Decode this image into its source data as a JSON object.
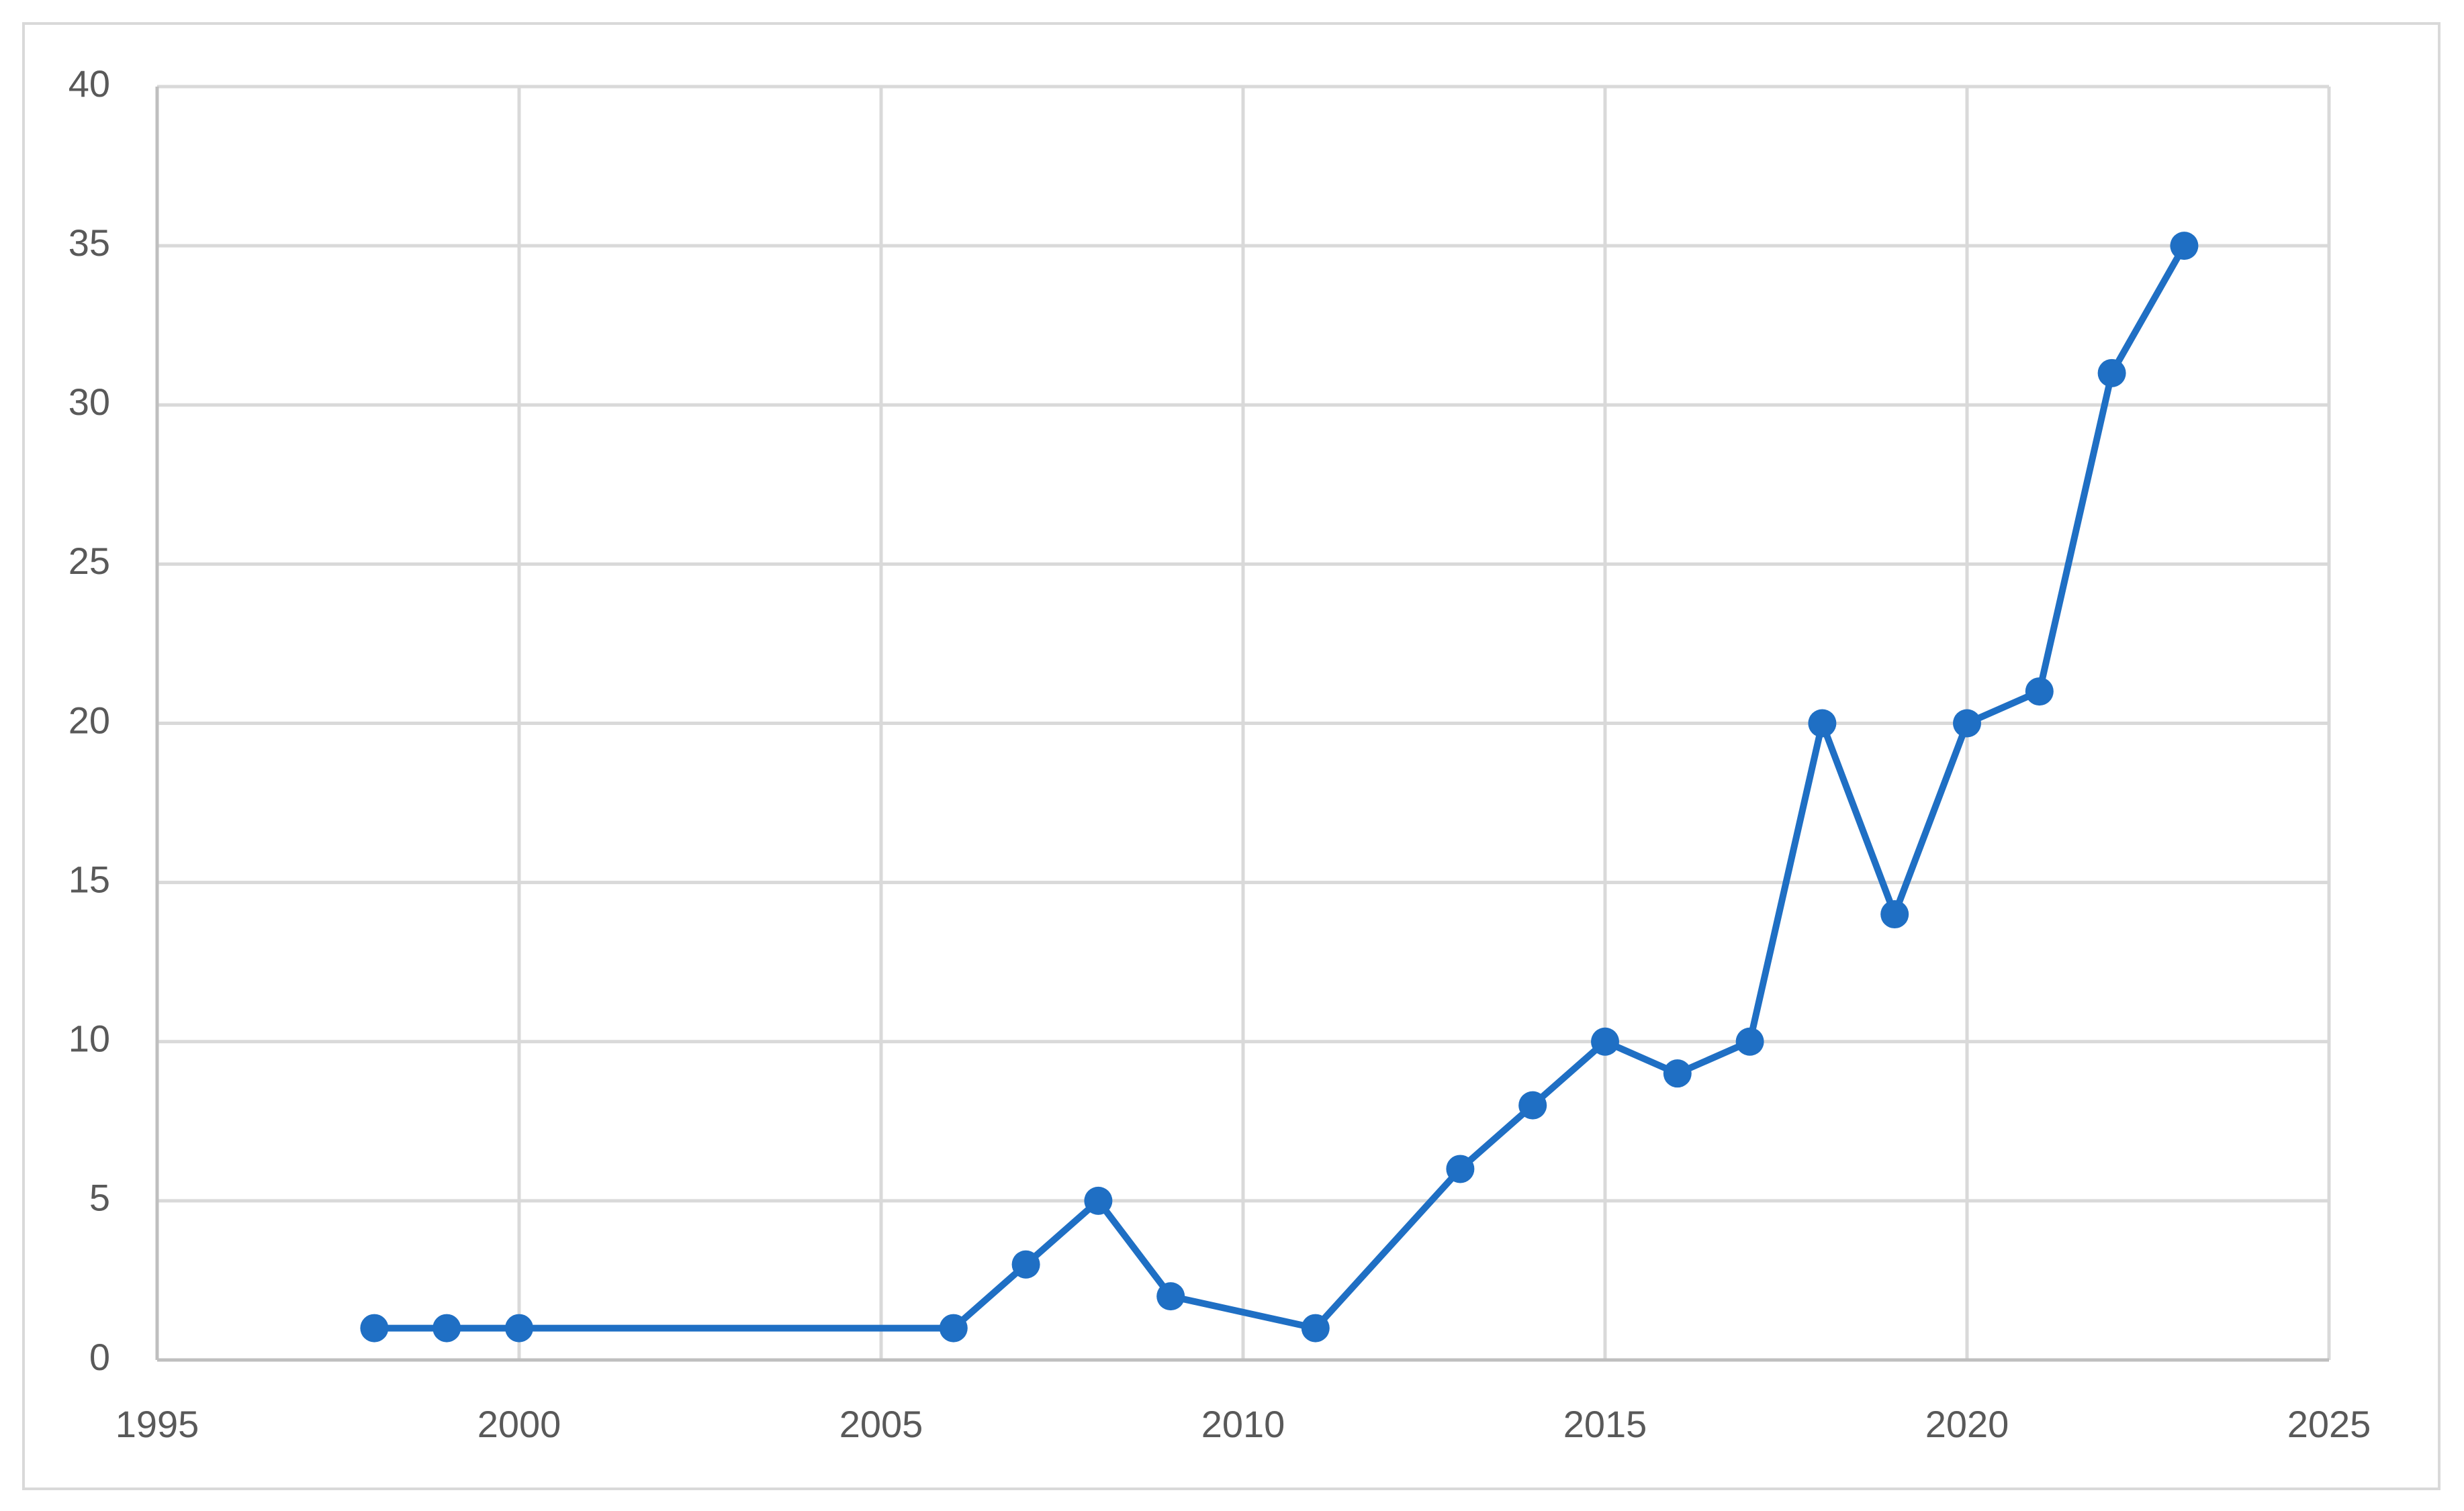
{
  "chart_data": {
    "type": "line",
    "x": [
      1998,
      1999,
      2000,
      2006,
      2007,
      2008,
      2009,
      2011,
      2013,
      2014,
      2015,
      2016,
      2017,
      2018,
      2019,
      2020,
      2021,
      2022,
      2023
    ],
    "values": [
      1,
      1,
      1,
      1,
      3,
      5,
      2,
      1,
      6,
      8,
      10,
      9,
      10,
      20,
      14,
      20,
      21,
      31,
      35
    ],
    "color": "#1f6fc4",
    "xlim": [
      1995,
      2025
    ],
    "xticks": [
      1995,
      2000,
      2005,
      2010,
      2015,
      2020,
      2025
    ],
    "ylim": [
      0,
      40
    ],
    "yticks": [
      0,
      5,
      10,
      15,
      20,
      25,
      30,
      35,
      40
    ],
    "grid": true,
    "markers": true
  }
}
